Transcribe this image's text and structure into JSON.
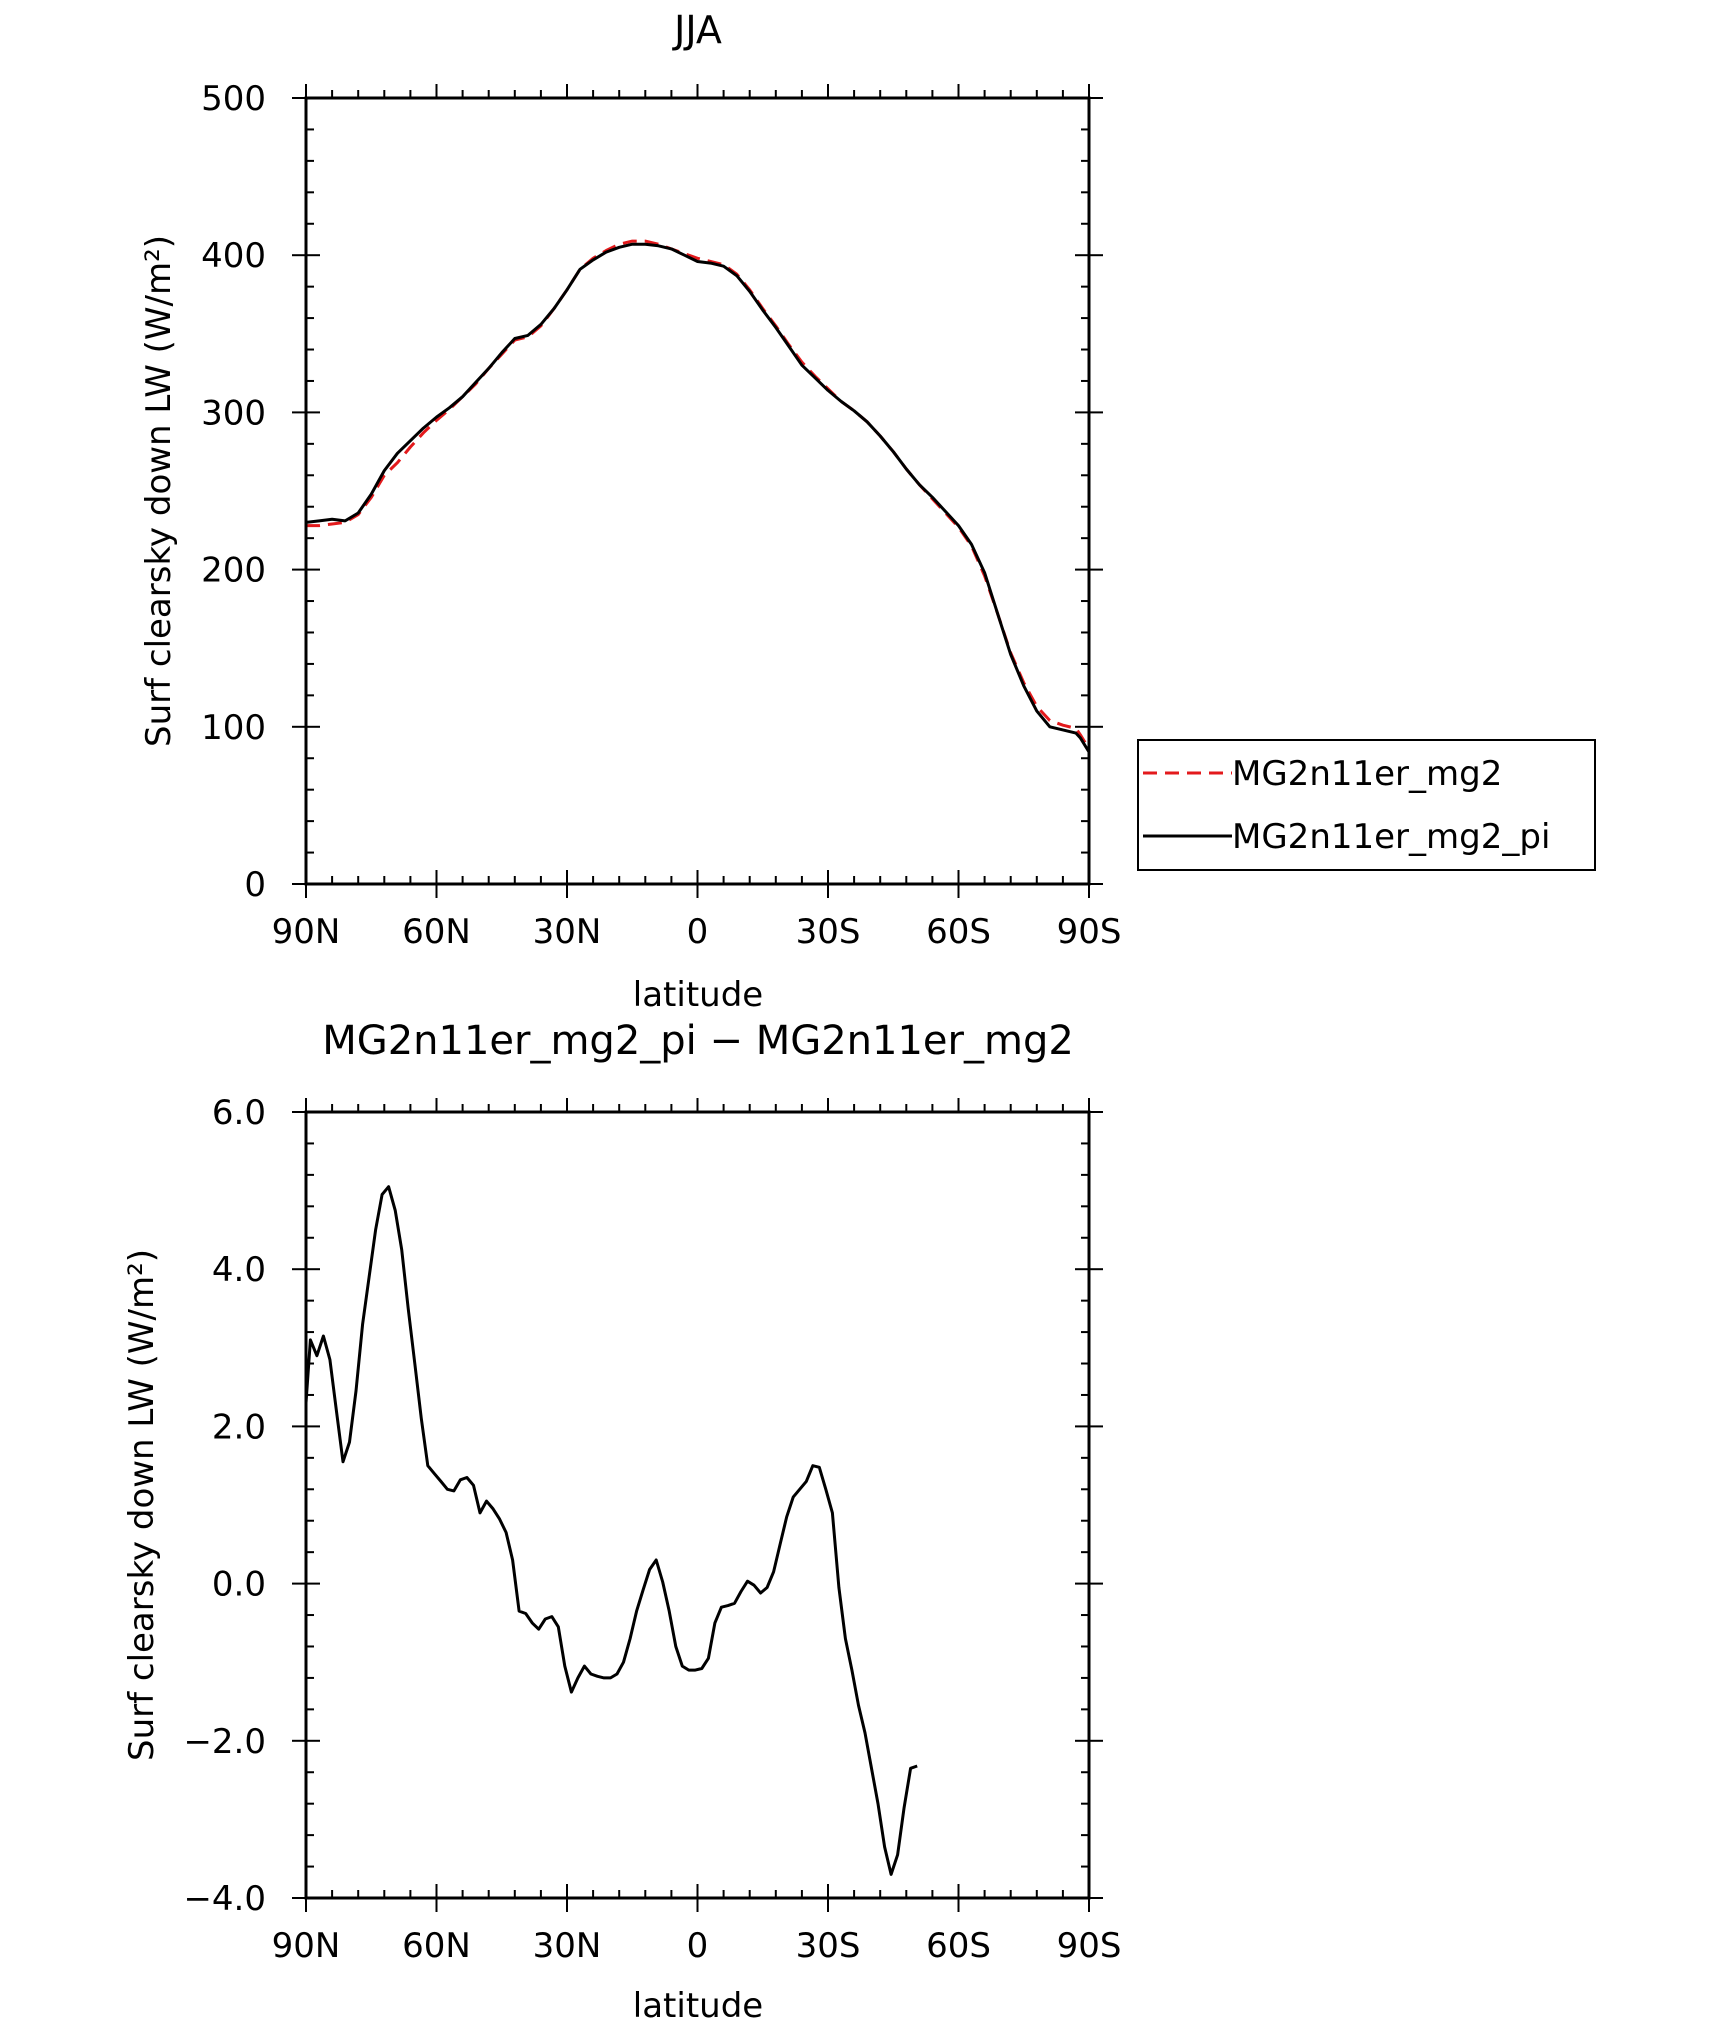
{
  "chart_data": [
    {
      "type": "line",
      "title": "JJA",
      "xlabel": "latitude",
      "ylabel": "Surf clearsky down LW (W/m²)",
      "xlim": [
        90,
        -90
      ],
      "ylim": [
        0,
        500
      ],
      "x_ticks": [
        90,
        60,
        30,
        0,
        -30,
        -60,
        -90
      ],
      "x_tick_labels": [
        "90N",
        "60N",
        "30N",
        "0",
        "30S",
        "60S",
        "90S"
      ],
      "y_ticks": [
        0,
        100,
        200,
        300,
        400,
        500
      ],
      "y_tick_labels": [
        "0",
        "100",
        "200",
        "300",
        "400",
        "500"
      ],
      "grid": false,
      "legend": "outside right",
      "series": [
        {
          "name": "MG2n11er_mg2",
          "color": "#e31a1c",
          "style": "dashed",
          "points": [
            [
              90,
              228
            ],
            [
              87,
              228
            ],
            [
              84,
              229
            ],
            [
              81,
              230
            ],
            [
              78,
              235
            ],
            [
              75,
              246
            ],
            [
              72,
              260
            ],
            [
              69,
              268
            ],
            [
              66,
              278
            ],
            [
              63,
              287
            ],
            [
              60,
              295
            ],
            [
              57,
              302
            ],
            [
              54,
              310
            ],
            [
              51,
              318
            ],
            [
              48,
              328
            ],
            [
              45,
              337
            ],
            [
              42,
              346
            ],
            [
              39,
              348
            ],
            [
              36,
              355
            ],
            [
              33,
              366
            ],
            [
              30,
              378
            ],
            [
              27,
              391
            ],
            [
              24,
              398
            ],
            [
              21,
              403
            ],
            [
              18,
              407
            ],
            [
              15,
              409
            ],
            [
              12,
              409
            ],
            [
              9,
              407
            ],
            [
              6,
              404
            ],
            [
              3,
              401
            ],
            [
              0,
              398
            ],
            [
              -3,
              396
            ],
            [
              -6,
              394
            ],
            [
              -9,
              388
            ],
            [
              -12,
              378
            ],
            [
              -15,
              366
            ],
            [
              -18,
              355
            ],
            [
              -21,
              343
            ],
            [
              -24,
              332
            ],
            [
              -27,
              323
            ],
            [
              -30,
              315
            ],
            [
              -33,
              307
            ],
            [
              -36,
              301
            ],
            [
              -39,
              294
            ],
            [
              -42,
              285
            ],
            [
              -45,
              275
            ],
            [
              -48,
              264
            ],
            [
              -51,
              254
            ],
            [
              -54,
              245
            ],
            [
              -57,
              236
            ],
            [
              -60,
              227
            ],
            [
              -63,
              215
            ],
            [
              -66,
              196
            ],
            [
              -69,
              172
            ],
            [
              -72,
              147
            ],
            [
              -75,
              128
            ],
            [
              -78,
              113
            ],
            [
              -81,
              104
            ],
            [
              -84,
              101
            ],
            [
              -87,
              99
            ],
            [
              -88,
              95
            ],
            [
              -90,
              86
            ],
            [
              -92,
              82
            ],
            [
              -93,
              80
            ]
          ]
        },
        {
          "name": "MG2n11er_mg2_pi",
          "color": "#000000",
          "style": "solid",
          "points": [
            [
              90,
              230
            ],
            [
              87,
              231
            ],
            [
              84,
              232
            ],
            [
              81,
              231
            ],
            [
              78,
              236
            ],
            [
              75,
              248
            ],
            [
              72,
              263
            ],
            [
              69,
              274
            ],
            [
              66,
              282
            ],
            [
              63,
              290
            ],
            [
              60,
              297
            ],
            [
              57,
              303
            ],
            [
              54,
              310
            ],
            [
              51,
              319
            ],
            [
              48,
              328
            ],
            [
              45,
              338
            ],
            [
              42,
              347
            ],
            [
              39,
              349
            ],
            [
              36,
              356
            ],
            [
              33,
              366
            ],
            [
              30,
              378
            ],
            [
              27,
              391
            ],
            [
              24,
              397
            ],
            [
              21,
              402
            ],
            [
              18,
              405
            ],
            [
              15,
              407
            ],
            [
              12,
              407
            ],
            [
              9,
              406
            ],
            [
              6,
              404
            ],
            [
              3,
              400
            ],
            [
              0,
              396
            ],
            [
              -3,
              395
            ],
            [
              -6,
              393
            ],
            [
              -9,
              387
            ],
            [
              -12,
              377
            ],
            [
              -15,
              365
            ],
            [
              -18,
              354
            ],
            [
              -21,
              342
            ],
            [
              -24,
              330
            ],
            [
              -27,
              322
            ],
            [
              -30,
              314
            ],
            [
              -33,
              307
            ],
            [
              -36,
              301
            ],
            [
              -39,
              294
            ],
            [
              -42,
              285
            ],
            [
              -45,
              275
            ],
            [
              -48,
              264
            ],
            [
              -51,
              254
            ],
            [
              -54,
              246
            ],
            [
              -57,
              237
            ],
            [
              -60,
              228
            ],
            [
              -63,
              216
            ],
            [
              -66,
              198
            ],
            [
              -69,
              172
            ],
            [
              -72,
              146
            ],
            [
              -75,
              126
            ],
            [
              -78,
              110
            ],
            [
              -81,
              100
            ],
            [
              -84,
              98
            ],
            [
              -87,
              96
            ],
            [
              -88,
              93
            ],
            [
              -90,
              84
            ],
            [
              -92,
              79
            ],
            [
              -93,
              78
            ]
          ]
        }
      ]
    },
    {
      "type": "line",
      "title": "MG2n11er_mg2_pi − MG2n11er_mg2",
      "xlabel": "latitude",
      "ylabel": "Surf clearsky down LW (W/m²)",
      "xlim": [
        90,
        -90
      ],
      "ylim": [
        -4.0,
        6.0
      ],
      "x_ticks": [
        90,
        60,
        30,
        0,
        -30,
        -60,
        -90
      ],
      "x_tick_labels": [
        "90N",
        "60N",
        "30N",
        "0",
        "30S",
        "60S",
        "90S"
      ],
      "y_ticks": [
        -4,
        -2,
        0,
        2,
        4,
        6
      ],
      "y_tick_labels": [
        "−4.0",
        "−2.0",
        "0.0",
        "2.0",
        "4.0",
        "6.0"
      ],
      "grid": false,
      "series": [
        {
          "color": "#000000",
          "style": "solid",
          "points": [
            [
              90,
              2.3
            ],
            [
              89,
              3.1
            ],
            [
              87.5,
              2.9
            ],
            [
              86,
              3.15
            ],
            [
              84.5,
              2.85
            ],
            [
              83,
              2.2
            ],
            [
              81.5,
              1.55
            ],
            [
              80,
              1.8
            ],
            [
              78.5,
              2.45
            ],
            [
              77,
              3.3
            ],
            [
              75.5,
              3.9
            ],
            [
              74,
              4.5
            ],
            [
              72.5,
              4.95
            ],
            [
              71,
              5.05
            ],
            [
              69.5,
              4.75
            ],
            [
              68,
              4.25
            ],
            [
              66.5,
              3.5
            ],
            [
              65,
              2.8
            ],
            [
              63.5,
              2.1
            ],
            [
              62,
              1.5
            ],
            [
              60.5,
              1.4
            ],
            [
              59,
              1.3
            ],
            [
              57.5,
              1.2
            ],
            [
              56,
              1.18
            ],
            [
              54.5,
              1.32
            ],
            [
              53,
              1.35
            ],
            [
              51.5,
              1.25
            ],
            [
              50,
              0.9
            ],
            [
              48.5,
              1.05
            ],
            [
              47,
              0.95
            ],
            [
              45.5,
              0.82
            ],
            [
              44,
              0.65
            ],
            [
              42.5,
              0.3
            ],
            [
              41,
              -0.35
            ],
            [
              39.5,
              -0.38
            ],
            [
              38,
              -0.5
            ],
            [
              36.5,
              -0.58
            ],
            [
              35,
              -0.45
            ],
            [
              33.5,
              -0.42
            ],
            [
              32,
              -0.55
            ],
            [
              30.5,
              -1.05
            ],
            [
              29,
              -1.38
            ],
            [
              27.5,
              -1.2
            ],
            [
              26,
              -1.05
            ],
            [
              24.5,
              -1.15
            ],
            [
              23,
              -1.18
            ],
            [
              21.5,
              -1.2
            ],
            [
              20,
              -1.2
            ],
            [
              18.5,
              -1.15
            ],
            [
              17,
              -1.0
            ],
            [
              15.5,
              -0.7
            ],
            [
              14,
              -0.35
            ],
            [
              12.5,
              -0.08
            ],
            [
              11,
              0.18
            ],
            [
              9.5,
              0.3
            ],
            [
              8,
              0.02
            ],
            [
              6.5,
              -0.35
            ],
            [
              5,
              -0.8
            ],
            [
              3.5,
              -1.05
            ],
            [
              2,
              -1.1
            ],
            [
              0.5,
              -1.1
            ],
            [
              -1,
              -1.08
            ],
            [
              -2.5,
              -0.95
            ],
            [
              -4,
              -0.5
            ],
            [
              -5.5,
              -0.3
            ],
            [
              -7,
              -0.28
            ],
            [
              -8.5,
              -0.25
            ],
            [
              -10,
              -0.1
            ],
            [
              -11.5,
              0.03
            ],
            [
              -13,
              -0.02
            ],
            [
              -14.5,
              -0.12
            ],
            [
              -16,
              -0.05
            ],
            [
              -17.5,
              0.15
            ],
            [
              -19,
              0.5
            ],
            [
              -20.5,
              0.85
            ],
            [
              -22,
              1.1
            ],
            [
              -23.5,
              1.2
            ],
            [
              -25,
              1.3
            ],
            [
              -26.5,
              1.5
            ],
            [
              -28,
              1.48
            ],
            [
              -29.5,
              1.2
            ],
            [
              -31,
              0.9
            ],
            [
              -32.5,
              -0.05
            ],
            [
              -34,
              -0.7
            ],
            [
              -35.5,
              -1.1
            ],
            [
              -37,
              -1.55
            ],
            [
              -38.5,
              -1.9
            ],
            [
              -40,
              -2.35
            ],
            [
              -41.5,
              -2.8
            ],
            [
              -43,
              -3.35
            ],
            [
              -44.5,
              -3.7
            ],
            [
              -46,
              -3.45
            ],
            [
              -47.5,
              -2.85
            ],
            [
              -49,
              -2.35
            ],
            [
              -50.5,
              -2.32
            ]
          ]
        }
      ]
    }
  ]
}
